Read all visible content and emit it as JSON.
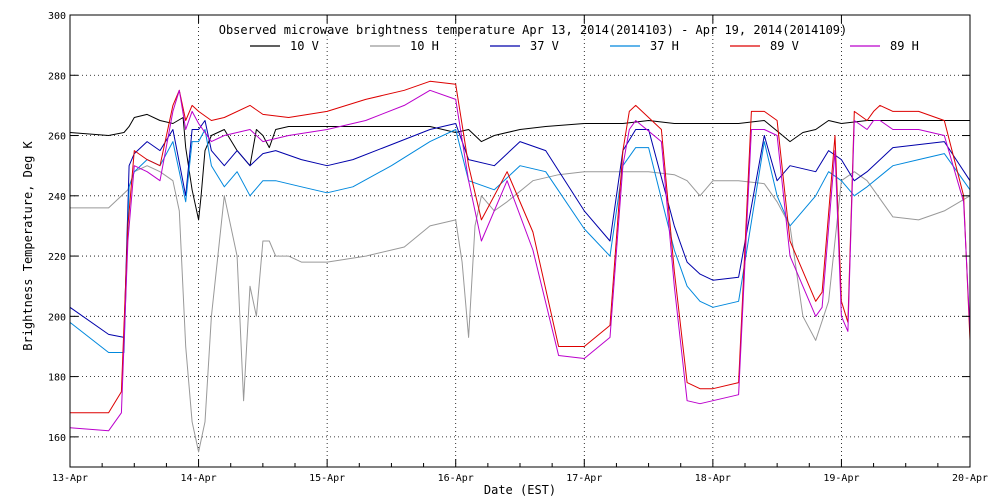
{
  "chart_data": {
    "type": "line",
    "title": "Observed microwave brightness temperature Apr 13, 2014(2014103) - Apr 19, 2014(2014109)",
    "xlabel": "Date (EST)",
    "ylabel": "Brightness Temperature, Deg K",
    "xlim": [
      0,
      7
    ],
    "ylim": [
      150,
      300
    ],
    "grid": true,
    "legend_position": "top",
    "x_tick_labels": [
      "13-Apr",
      "14-Apr",
      "15-Apr",
      "16-Apr",
      "17-Apr",
      "18-Apr",
      "19-Apr",
      "20-Apr"
    ],
    "x_ticks": [
      0,
      1,
      2,
      3,
      4,
      5,
      6,
      7
    ],
    "y_ticks": [
      160,
      180,
      200,
      220,
      240,
      260,
      280,
      300
    ],
    "y_tick_labels": [
      "160",
      "180",
      "200",
      "220",
      "240",
      "260",
      "280",
      "300"
    ],
    "series": [
      {
        "name": "10 V",
        "color": "#000000",
        "x": [
          0,
          0.3,
          0.42,
          0.46,
          0.5,
          0.6,
          0.7,
          0.8,
          0.88,
          0.9,
          0.95,
          1.0,
          1.02,
          1.05,
          1.1,
          1.2,
          1.3,
          1.4,
          1.45,
          1.5,
          1.55,
          1.6,
          1.7,
          1.8,
          2.0,
          2.4,
          2.8,
          3.0,
          3.1,
          3.2,
          3.3,
          3.5,
          3.7,
          4.0,
          4.3,
          4.5,
          4.7,
          4.8,
          4.9,
          5.0,
          5.2,
          5.4,
          5.6,
          5.7,
          5.8,
          5.9,
          6.0,
          6.2,
          6.4,
          6.6,
          6.8,
          7.0
        ],
        "y": [
          261,
          260,
          261,
          263,
          266,
          267,
          265,
          264,
          266,
          256,
          242,
          232,
          240,
          255,
          260,
          262,
          255,
          250,
          262,
          260,
          256,
          262,
          263,
          263,
          263,
          263,
          263,
          261,
          262,
          258,
          260,
          262,
          263,
          264,
          264,
          265,
          264,
          264,
          264,
          264,
          264,
          265,
          258,
          261,
          262,
          265,
          264,
          265,
          265,
          265,
          265,
          265
        ]
      },
      {
        "name": "10 H",
        "color": "#999999",
        "x": [
          0,
          0.3,
          0.45,
          0.5,
          0.6,
          0.7,
          0.8,
          0.85,
          0.9,
          0.95,
          1.0,
          1.05,
          1.1,
          1.2,
          1.3,
          1.35,
          1.4,
          1.45,
          1.5,
          1.55,
          1.6,
          1.7,
          1.8,
          2.0,
          2.3,
          2.6,
          2.8,
          3.0,
          3.05,
          3.1,
          3.15,
          3.2,
          3.3,
          3.4,
          3.6,
          3.8,
          4.0,
          4.3,
          4.5,
          4.7,
          4.8,
          4.9,
          5.0,
          5.2,
          5.4,
          5.5,
          5.6,
          5.7,
          5.8,
          5.9,
          6.0,
          6.1,
          6.2,
          6.4,
          6.6,
          6.8,
          7.0
        ],
        "y": [
          236,
          236,
          242,
          248,
          250,
          248,
          245,
          235,
          190,
          165,
          155,
          165,
          200,
          240,
          220,
          172,
          210,
          200,
          225,
          225,
          220,
          220,
          218,
          218,
          220,
          223,
          230,
          232,
          218,
          193,
          230,
          240,
          235,
          238,
          245,
          247,
          248,
          248,
          248,
          247,
          245,
          240,
          245,
          245,
          244,
          238,
          230,
          200,
          192,
          205,
          245,
          248,
          245,
          233,
          232,
          235,
          240
        ]
      },
      {
        "name": "37 V",
        "color": "#0000aa",
        "x": [
          0,
          0.3,
          0.42,
          0.46,
          0.5,
          0.6,
          0.7,
          0.8,
          0.9,
          0.95,
          1.0,
          1.05,
          1.1,
          1.2,
          1.3,
          1.4,
          1.5,
          1.6,
          1.8,
          2.0,
          2.2,
          2.5,
          2.8,
          3.0,
          3.1,
          3.3,
          3.5,
          3.7,
          4.0,
          4.2,
          4.3,
          4.4,
          4.5,
          4.7,
          4.8,
          4.9,
          5.0,
          5.2,
          5.4,
          5.5,
          5.6,
          5.8,
          5.9,
          6.0,
          6.1,
          6.2,
          6.4,
          6.6,
          6.8,
          7.0
        ],
        "y": [
          203,
          194,
          193,
          250,
          254,
          258,
          255,
          262,
          240,
          262,
          262,
          265,
          255,
          250,
          255,
          250,
          254,
          255,
          252,
          250,
          252,
          257,
          262,
          264,
          252,
          250,
          258,
          255,
          235,
          225,
          255,
          262,
          262,
          230,
          218,
          214,
          212,
          213,
          260,
          245,
          250,
          248,
          255,
          252,
          245,
          248,
          256,
          257,
          258,
          245
        ]
      },
      {
        "name": "37 H",
        "color": "#0088dd",
        "x": [
          0,
          0.3,
          0.42,
          0.46,
          0.5,
          0.6,
          0.7,
          0.8,
          0.9,
          0.95,
          1.0,
          1.05,
          1.1,
          1.2,
          1.3,
          1.4,
          1.5,
          1.6,
          1.8,
          2.0,
          2.2,
          2.5,
          2.8,
          3.0,
          3.1,
          3.3,
          3.5,
          3.7,
          4.0,
          4.2,
          4.3,
          4.4,
          4.5,
          4.7,
          4.8,
          4.9,
          5.0,
          5.2,
          5.4,
          5.5,
          5.6,
          5.8,
          5.9,
          6.0,
          6.1,
          6.2,
          6.4,
          6.6,
          6.8,
          7.0
        ],
        "y": [
          198,
          188,
          188,
          243,
          248,
          252,
          250,
          258,
          238,
          258,
          258,
          262,
          250,
          243,
          248,
          240,
          245,
          245,
          243,
          241,
          243,
          250,
          258,
          262,
          245,
          242,
          250,
          248,
          229,
          220,
          250,
          256,
          256,
          222,
          210,
          205,
          203,
          205,
          258,
          240,
          230,
          240,
          248,
          245,
          240,
          243,
          250,
          252,
          254,
          242
        ]
      },
      {
        "name": "89 V",
        "color": "#dd0000",
        "x": [
          0,
          0.3,
          0.4,
          0.45,
          0.5,
          0.6,
          0.7,
          0.8,
          0.85,
          0.9,
          0.95,
          1.0,
          1.1,
          1.2,
          1.4,
          1.5,
          1.7,
          2.0,
          2.3,
          2.6,
          2.8,
          3.0,
          3.1,
          3.2,
          3.4,
          3.6,
          3.8,
          4.0,
          4.2,
          4.3,
          4.35,
          4.4,
          4.6,
          4.7,
          4.8,
          4.9,
          5.0,
          5.2,
          5.3,
          5.4,
          5.5,
          5.6,
          5.8,
          5.85,
          5.95,
          6.0,
          6.05,
          6.1,
          6.2,
          6.25,
          6.3,
          6.4,
          6.6,
          6.8,
          6.95,
          7.0
        ],
        "y": [
          168,
          168,
          175,
          230,
          255,
          252,
          250,
          270,
          275,
          265,
          270,
          268,
          265,
          266,
          270,
          267,
          266,
          268,
          272,
          275,
          278,
          277,
          250,
          232,
          248,
          228,
          190,
          190,
          197,
          255,
          268,
          270,
          262,
          215,
          178,
          176,
          176,
          178,
          268,
          268,
          265,
          225,
          205,
          208,
          260,
          205,
          198,
          268,
          265,
          268,
          270,
          268,
          268,
          265,
          240,
          192
        ]
      },
      {
        "name": "89 H",
        "color": "#bb00cc",
        "x": [
          0,
          0.3,
          0.4,
          0.45,
          0.5,
          0.6,
          0.7,
          0.8,
          0.85,
          0.9,
          0.95,
          1.0,
          1.1,
          1.2,
          1.4,
          1.5,
          1.7,
          2.0,
          2.3,
          2.6,
          2.8,
          3.0,
          3.1,
          3.2,
          3.4,
          3.6,
          3.8,
          4.0,
          4.2,
          4.3,
          4.35,
          4.4,
          4.6,
          4.7,
          4.8,
          4.9,
          5.0,
          5.2,
          5.3,
          5.4,
          5.5,
          5.6,
          5.8,
          5.85,
          5.95,
          6.0,
          6.05,
          6.1,
          6.2,
          6.25,
          6.3,
          6.4,
          6.6,
          6.8,
          6.95,
          7.0
        ],
        "y": [
          163,
          162,
          168,
          225,
          250,
          248,
          245,
          268,
          275,
          262,
          268,
          264,
          258,
          260,
          262,
          258,
          260,
          262,
          265,
          270,
          275,
          272,
          245,
          225,
          245,
          222,
          187,
          186,
          193,
          250,
          262,
          265,
          258,
          210,
          172,
          171,
          172,
          174,
          262,
          262,
          260,
          220,
          200,
          203,
          255,
          200,
          195,
          265,
          262,
          265,
          265,
          262,
          262,
          260,
          238,
          195
        ]
      }
    ]
  }
}
